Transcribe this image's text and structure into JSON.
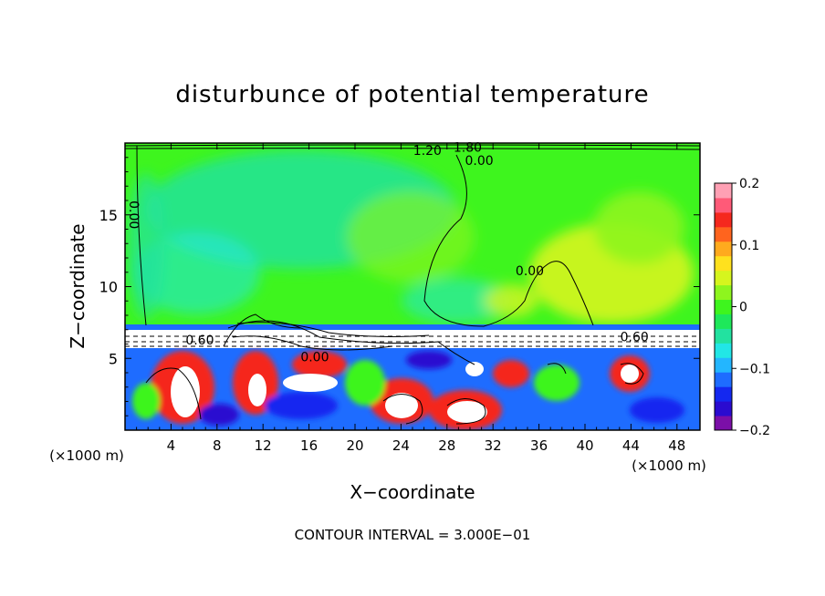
{
  "chart_data": {
    "type": "heatmap",
    "title": "disturbunce of potential temperature",
    "xlabel": "X−coordinate",
    "ylabel": "Z−coordinate",
    "x_unit": "(×1000 m)",
    "z_unit": "(×1000 m)",
    "x_range": [
      0,
      50
    ],
    "z_range": [
      0,
      20
    ],
    "x_ticks": [
      4,
      8,
      12,
      16,
      20,
      24,
      28,
      32,
      36,
      40,
      44,
      48
    ],
    "x_tick_labels": [
      "4",
      "8",
      "12",
      "16",
      "20",
      "24",
      "28",
      "32",
      "36",
      "40",
      "44",
      "48"
    ],
    "z_ticks": [
      5,
      10,
      15
    ],
    "z_tick_labels": [
      "5",
      "10",
      "15"
    ],
    "colorbar": {
      "range": [
        -0.2,
        0.2
      ],
      "ticks": [
        0.2,
        0.1,
        0,
        -0.1,
        -0.2
      ],
      "tick_labels": [
        "0.2",
        "0.1",
        "0",
        "−0.1",
        "−0.2"
      ],
      "colors": [
        "#7b0fa8",
        "#2a0bd0",
        "#1428f0",
        "#1e6cff",
        "#23b6ff",
        "#22e6e6",
        "#22e2a0",
        "#1ee85a",
        "#3ef51e",
        "#8ef51e",
        "#d6f51e",
        "#ffe11e",
        "#ffaa1e",
        "#ff641e",
        "#f5281e",
        "#ff5a78",
        "#ffa0b4"
      ]
    },
    "contour_labels": [
      {
        "text": "0.00",
        "x": 0.8,
        "z": 15.0
      },
      {
        "text": "0.00",
        "x": 30.8,
        "z": 18.8
      },
      {
        "text": "0.00",
        "x": 35.2,
        "z": 11.1
      },
      {
        "text": "1.20",
        "x": 26.3,
        "z": 19.5
      },
      {
        "text": "1.80",
        "x": 29.8,
        "z": 19.7
      },
      {
        "text": "0.60",
        "x": 6.5,
        "z": 6.3
      },
      {
        "text": "0.00",
        "x": 16.5,
        "z": 5.1
      },
      {
        "text": "0.60",
        "x": 44.3,
        "z": 6.5
      }
    ],
    "annotation": "CONTOUR INTERVAL = 3.000E−01"
  }
}
